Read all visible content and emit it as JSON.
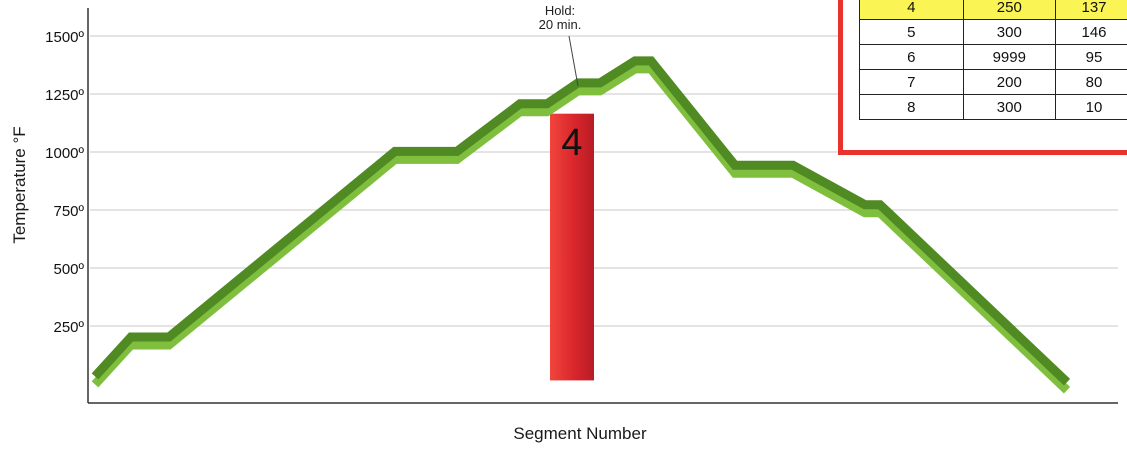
{
  "chart_data": {
    "type": "line",
    "xlabel": "Segment Number",
    "ylabel": "Temperature °F",
    "y_ticks": [
      "250º",
      "500º",
      "750º",
      "1000º",
      "1250º",
      "1500º"
    ],
    "y_tick_values": [
      250,
      500,
      750,
      1000,
      1250,
      1500
    ],
    "ylim": [
      0,
      1650
    ],
    "grid": true,
    "series": [
      {
        "values": [
          {
            "x": 0,
            "y": 50
          },
          {
            "x": 36,
            "y": 220
          },
          {
            "x": 74,
            "y": 220
          },
          {
            "x": 300,
            "y": 1020
          },
          {
            "x": 362,
            "y": 1020
          },
          {
            "x": 425,
            "y": 1225
          },
          {
            "x": 452,
            "y": 1225
          },
          {
            "x": 483,
            "y": 1315
          },
          {
            "x": 505,
            "y": 1315
          },
          {
            "x": 540,
            "y": 1410
          },
          {
            "x": 556,
            "y": 1410
          },
          {
            "x": 640,
            "y": 960
          },
          {
            "x": 698,
            "y": 960
          },
          {
            "x": 770,
            "y": 790
          },
          {
            "x": 785,
            "y": 790
          },
          {
            "x": 972,
            "y": 25
          }
        ]
      }
    ],
    "highlight_bar": {
      "label": "4",
      "y_top": 1260,
      "y_bottom": 50
    },
    "annotation": {
      "text_line1": "Hold:",
      "text_line2": "20 min."
    }
  },
  "table": {
    "rows": [
      [
        "4",
        "250",
        "137"
      ],
      [
        "5",
        "300",
        "146"
      ],
      [
        "6",
        "9999",
        "95"
      ],
      [
        "7",
        "200",
        "80"
      ],
      [
        "8",
        "300",
        "10"
      ]
    ],
    "active_row": 0
  },
  "colors": {
    "line_dark": "#4f8a23",
    "line_light": "#7fbf3d",
    "bar_red": "#d9262c",
    "table_border": "#e8322e",
    "active_row": "#fbf455"
  }
}
